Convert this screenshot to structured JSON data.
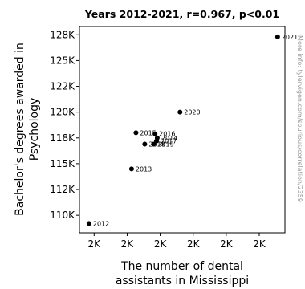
{
  "chart_data": {
    "type": "scatter",
    "title": "Years 2012-2021, r=0.967, p<0.01",
    "xlabel": [
      "The number of dental",
      "assistants in Mississippi"
    ],
    "ylabel": [
      "Bachelor's degrees awarded in",
      "Psychology"
    ],
    "watermark": "More info: tylervigen.com/spurious/correlation/2359",
    "xlim": [
      1945,
      2225
    ],
    "ylim": [
      108300,
      128300
    ],
    "xticks": [
      1965,
      2010,
      2055,
      2100,
      2145,
      2190
    ],
    "xtick_labels": [
      "2K",
      "2K",
      "2K",
      "2K",
      "2K",
      "2K"
    ],
    "yticks": [
      110000,
      112500,
      115000,
      117500,
      120000,
      122500,
      125000,
      127500
    ],
    "ytick_labels": [
      "110K",
      "112K",
      "115K",
      "118K",
      "120K",
      "122K",
      "125K",
      "128K"
    ],
    "point_color": "#000000",
    "points": [
      {
        "label": "2012",
        "x": 1958,
        "y": 109200
      },
      {
        "label": "2013",
        "x": 2016,
        "y": 114500
      },
      {
        "label": "2014",
        "x": 2051,
        "y": 117500
      },
      {
        "label": "2015",
        "x": 2022,
        "y": 118000
      },
      {
        "label": "2016",
        "x": 2048,
        "y": 117900
      },
      {
        "label": "2017",
        "x": 2050,
        "y": 117200
      },
      {
        "label": "2018",
        "x": 2034,
        "y": 116900
      },
      {
        "label": "2019",
        "x": 2046,
        "y": 116900
      },
      {
        "label": "2020",
        "x": 2082,
        "y": 120000
      },
      {
        "label": "2021",
        "x": 2215,
        "y": 127300
      }
    ]
  }
}
